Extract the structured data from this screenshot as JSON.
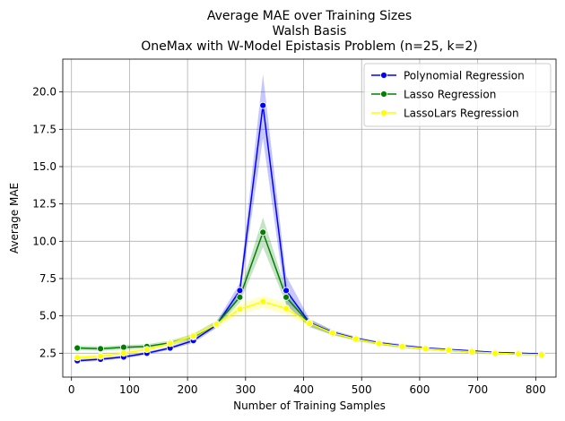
{
  "chart_data": {
    "type": "line",
    "title_lines": [
      "Average MAE over Training Sizes",
      "Walsh Basis",
      "OneMax with W-Model Epistasis Problem (n=25, k=2)"
    ],
    "xlabel": "Number of Training Samples",
    "ylabel": "Average MAE",
    "xlim": [
      -15,
      835
    ],
    "ylim": [
      0.9,
      22.2
    ],
    "xticks": [
      0,
      100,
      200,
      300,
      400,
      500,
      600,
      700,
      800
    ],
    "yticks": [
      2.5,
      5.0,
      7.5,
      10.0,
      12.5,
      15.0,
      17.5,
      20.0
    ],
    "ytick_labels": [
      "2.5",
      "5.0",
      "7.5",
      "10.0",
      "12.5",
      "15.0",
      "17.5",
      "20.0"
    ],
    "grid": true,
    "legend_position": "top-right",
    "x": [
      10,
      50,
      90,
      130,
      170,
      210,
      250,
      290,
      330,
      370,
      410,
      450,
      490,
      530,
      570,
      610,
      650,
      690,
      730,
      770,
      810
    ],
    "series": [
      {
        "name": "Polynomial Regression",
        "color": "#0000ff",
        "values": [
          2.0,
          2.1,
          2.25,
          2.5,
          2.85,
          3.35,
          4.4,
          6.7,
          19.1,
          6.7,
          4.55,
          3.9,
          3.5,
          3.2,
          3.0,
          2.85,
          2.75,
          2.65,
          2.55,
          2.5,
          2.45
        ],
        "lower": [
          1.9,
          2.0,
          2.15,
          2.4,
          2.75,
          3.2,
          4.2,
          6.2,
          16.9,
          5.7,
          4.3,
          3.75,
          3.4,
          3.1,
          2.9,
          2.78,
          2.68,
          2.58,
          2.5,
          2.45,
          2.4
        ],
        "upper": [
          2.1,
          2.2,
          2.35,
          2.6,
          2.95,
          3.5,
          4.6,
          7.2,
          21.2,
          7.7,
          4.8,
          4.05,
          3.6,
          3.3,
          3.1,
          2.92,
          2.82,
          2.72,
          2.6,
          2.55,
          2.5
        ]
      },
      {
        "name": "Lasso Regression",
        "color": "#008000",
        "values": [
          2.85,
          2.8,
          2.9,
          2.95,
          3.2,
          3.6,
          4.45,
          6.25,
          10.6,
          6.25,
          4.5,
          3.85,
          3.45,
          3.15,
          2.95,
          2.8,
          2.7,
          2.6,
          2.5,
          2.45,
          2.4
        ],
        "lower": [
          2.7,
          2.65,
          2.75,
          2.8,
          3.05,
          3.4,
          4.2,
          5.9,
          9.6,
          5.8,
          4.25,
          3.7,
          3.35,
          3.05,
          2.87,
          2.73,
          2.63,
          2.53,
          2.44,
          2.4,
          2.35
        ],
        "upper": [
          3.0,
          2.95,
          3.05,
          3.1,
          3.35,
          3.8,
          4.7,
          6.6,
          11.6,
          6.7,
          4.75,
          4.0,
          3.55,
          3.25,
          3.03,
          2.87,
          2.77,
          2.67,
          2.56,
          2.5,
          2.45
        ]
      },
      {
        "name": "LassoLars Regression",
        "color": "#ffff00",
        "values": [
          2.2,
          2.3,
          2.5,
          2.75,
          3.15,
          3.65,
          4.45,
          5.45,
          5.95,
          5.5,
          4.5,
          3.85,
          3.45,
          3.15,
          2.95,
          2.8,
          2.7,
          2.6,
          2.5,
          2.45,
          2.4
        ],
        "lower": [
          2.05,
          2.15,
          2.35,
          2.6,
          3.0,
          3.45,
          4.25,
          5.1,
          5.55,
          5.1,
          4.3,
          3.7,
          3.35,
          3.05,
          2.87,
          2.73,
          2.63,
          2.53,
          2.44,
          2.4,
          2.35
        ],
        "upper": [
          2.35,
          2.45,
          2.65,
          2.9,
          3.3,
          3.85,
          4.65,
          5.8,
          6.35,
          5.9,
          4.7,
          4.0,
          3.55,
          3.25,
          3.03,
          2.87,
          2.77,
          2.67,
          2.56,
          2.5,
          2.45
        ]
      }
    ]
  }
}
